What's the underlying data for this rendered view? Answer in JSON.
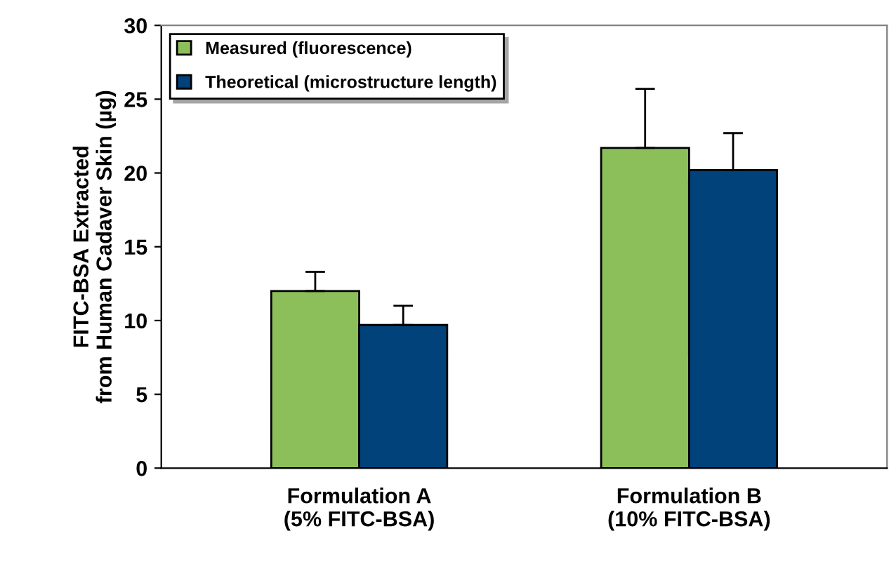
{
  "chart_data": {
    "type": "bar",
    "ylabel": "FITC-BSA Extracted\nfrom Human Cadaver Skin (µg)",
    "categories": [
      "Formulation A\n(5% FITC-BSA)",
      "Formulation B\n(10% FITC-BSA)"
    ],
    "series": [
      {
        "name": "Measured (fluorescence)",
        "color": "#8cbf5a",
        "values": [
          12.0,
          21.7
        ],
        "errors": [
          [
            12.0,
            13.3
          ],
          [
            21.7,
            25.7
          ]
        ]
      },
      {
        "name": "Theoretical (microstructure length)",
        "color": "#004279",
        "values": [
          9.7,
          20.2
        ],
        "errors": [
          [
            9.7,
            11.0
          ],
          [
            20.2,
            22.7
          ]
        ]
      }
    ],
    "ylim": [
      0,
      30
    ],
    "yticks": [
      0,
      5,
      10,
      15,
      20,
      25,
      30
    ],
    "grid": false,
    "legend": "top left"
  }
}
